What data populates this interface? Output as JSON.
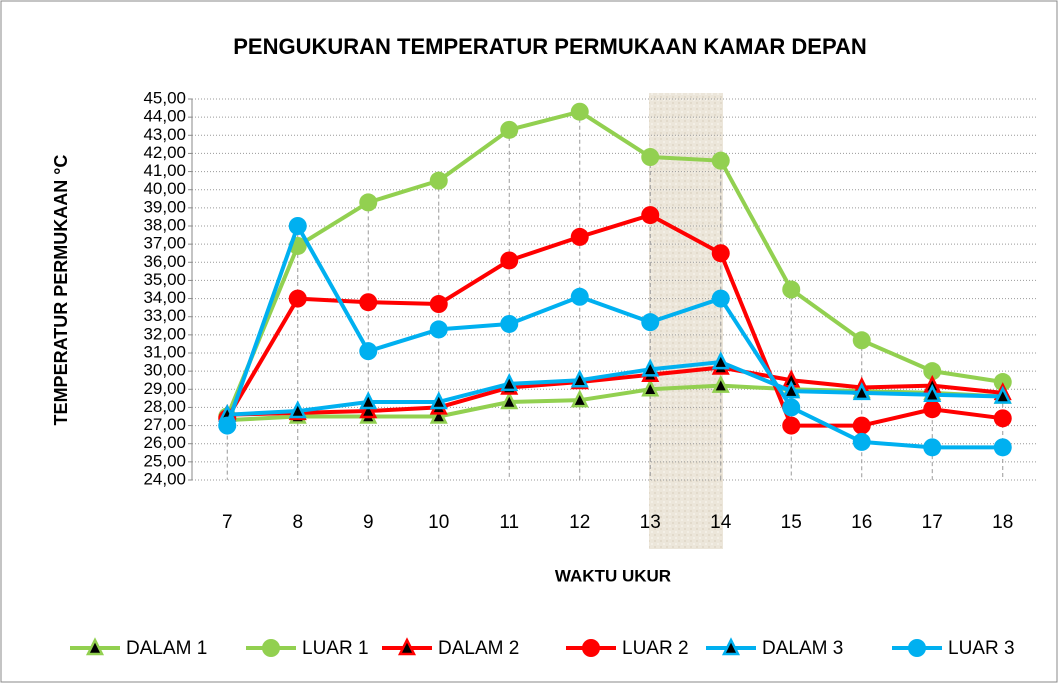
{
  "chart_data": {
    "type": "line",
    "title": "PENGUKURAN TEMPERATUR PERMUKAAN KAMAR DEPAN",
    "x_label": "WAKTU UKUR",
    "y_label": "TEMPERATUR PERMUKAAN °C",
    "categories": [
      "7",
      "8",
      "9",
      "10",
      "11",
      "12",
      "13",
      "14",
      "15",
      "16",
      "17",
      "18"
    ],
    "series": [
      {
        "name": "DALAM 1",
        "color": "#92d050",
        "marker": "triangle",
        "values": [
          27.3,
          27.5,
          27.5,
          27.5,
          28.3,
          28.4,
          29.0,
          29.2,
          29.0,
          28.9,
          28.8,
          28.6
        ]
      },
      {
        "name": "LUAR 1",
        "color": "#92d050",
        "marker": "circle",
        "values": [
          27.5,
          36.9,
          39.3,
          40.5,
          43.3,
          44.3,
          41.8,
          41.6,
          34.5,
          31.7,
          30.0,
          29.4
        ]
      },
      {
        "name": "DALAM 2",
        "color": "#ff0000",
        "marker": "triangle",
        "values": [
          27.6,
          27.7,
          27.8,
          28.0,
          29.1,
          29.4,
          29.8,
          30.2,
          29.5,
          29.1,
          29.2,
          28.8
        ]
      },
      {
        "name": "LUAR 2",
        "color": "#ff0000",
        "marker": "circle",
        "values": [
          27.4,
          34.0,
          33.8,
          33.7,
          36.1,
          37.4,
          38.6,
          36.5,
          27.0,
          27.0,
          27.9,
          27.4
        ]
      },
      {
        "name": "DALAM 3",
        "color": "#00b0f0",
        "marker": "triangle",
        "values": [
          27.6,
          27.8,
          28.3,
          28.3,
          29.3,
          29.5,
          30.1,
          30.5,
          28.9,
          28.8,
          28.7,
          28.6
        ]
      },
      {
        "name": "LUAR 3",
        "color": "#00b0f0",
        "marker": "circle",
        "values": [
          27.0,
          38.0,
          31.1,
          32.3,
          32.6,
          34.1,
          32.7,
          34.0,
          28.0,
          26.1,
          25.8,
          25.8
        ]
      }
    ],
    "ylim": [
      24,
      45
    ],
    "yticks": [
      {
        "value": 24,
        "label": "24,00"
      },
      {
        "value": 25,
        "label": "25,00"
      },
      {
        "value": 26,
        "label": "26,00"
      },
      {
        "value": 27,
        "label": "27,00"
      },
      {
        "value": 28,
        "label": "28,00"
      },
      {
        "value": 29,
        "label": "29,00"
      },
      {
        "value": 30,
        "label": "30,00"
      },
      {
        "value": 31,
        "label": "31,00"
      },
      {
        "value": 32,
        "label": "32,00"
      },
      {
        "value": 33,
        "label": "33,00"
      },
      {
        "value": 34,
        "label": "34,00"
      },
      {
        "value": 35,
        "label": "35,00"
      },
      {
        "value": 36,
        "label": "36,00"
      },
      {
        "value": 37,
        "label": "37,00"
      },
      {
        "value": 38,
        "label": "38,00"
      },
      {
        "value": 39,
        "label": "39,00"
      },
      {
        "value": 40,
        "label": "40,00"
      },
      {
        "value": 41,
        "label": "41,00"
      },
      {
        "value": 42,
        "label": "42,00"
      },
      {
        "value": 43,
        "label": "43,00"
      },
      {
        "value": 44,
        "label": "44,00"
      },
      {
        "value": 45,
        "label": "45,00"
      }
    ],
    "grid": true,
    "legend": "bottom"
  }
}
